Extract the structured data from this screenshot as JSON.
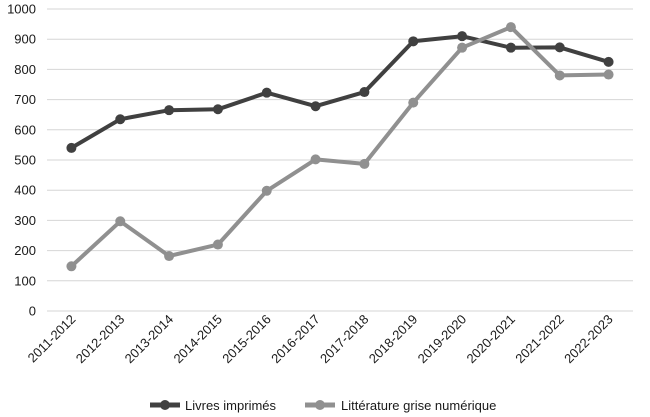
{
  "chart_data": {
    "type": "line",
    "categories": [
      "2011-2012",
      "2012-2013",
      "2013-2014",
      "2014-2015",
      "2015-2016",
      "2016-2017",
      "2017-2018",
      "2018-2019",
      "2019-2020",
      "2020-2021",
      "2021-2022",
      "2022-2023"
    ],
    "series": [
      {
        "name": "Livres imprimés",
        "color": "#404040",
        "values": [
          540,
          635,
          665,
          668,
          723,
          678,
          725,
          893,
          910,
          872,
          873,
          825
        ]
      },
      {
        "name": "Littérature grise numérique",
        "color": "#909090",
        "values": [
          148,
          297,
          182,
          220,
          398,
          502,
          487,
          690,
          872,
          940,
          780,
          783
        ]
      }
    ],
    "ylim": [
      0,
      1000
    ],
    "yticks": [
      0,
      100,
      200,
      300,
      400,
      500,
      600,
      700,
      800,
      900,
      1000
    ],
    "grid": true,
    "legend_position": "bottom"
  }
}
